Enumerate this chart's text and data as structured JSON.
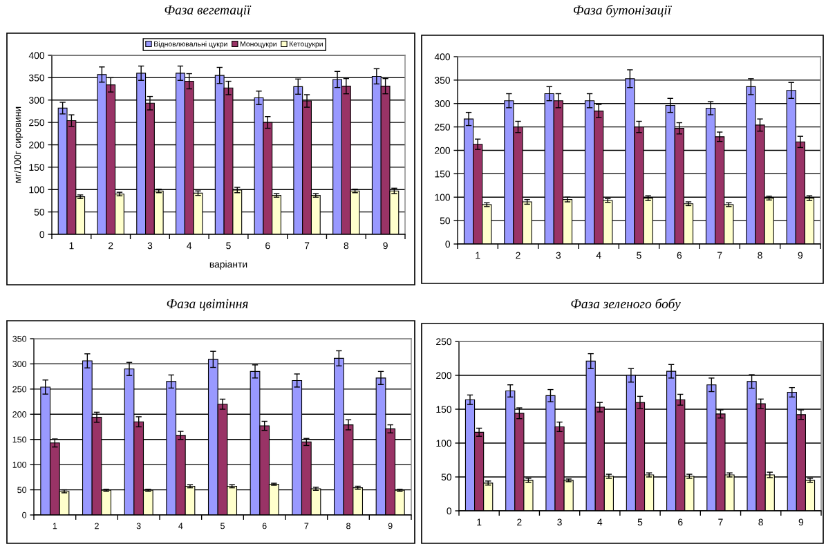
{
  "chart_data": [
    {
      "type": "bar",
      "title": "Фаза вегетації",
      "xlabel": "варіанти",
      "ylabel": "мг/100г сировини",
      "categories": [
        "1",
        "2",
        "3",
        "4",
        "5",
        "6",
        "7",
        "8",
        "9"
      ],
      "ylim": [
        0,
        400
      ],
      "yticks": [
        0,
        50,
        100,
        150,
        200,
        250,
        300,
        350,
        400
      ],
      "grid": "y",
      "legend": "top",
      "series": [
        {
          "name": "Відновлювальні цукри",
          "color": "#9999ff",
          "values": [
            282,
            357,
            360,
            360,
            355,
            305,
            330,
            346,
            353
          ],
          "errors": [
            13,
            17,
            16,
            16,
            18,
            15,
            17,
            18,
            17
          ]
        },
        {
          "name": "Моноцукри",
          "color": "#993366",
          "values": [
            254,
            334,
            293,
            342,
            327,
            250,
            298,
            331,
            331
          ],
          "errors": [
            13,
            16,
            15,
            17,
            15,
            13,
            14,
            17,
            17
          ]
        },
        {
          "name": "Кетоцукри",
          "color": "#ffffcc",
          "values": [
            84,
            90,
            97,
            92,
            99,
            87,
            87,
            97,
            97
          ],
          "errors": [
            4,
            4,
            4,
            5,
            6,
            4,
            4,
            4,
            6
          ]
        }
      ]
    },
    {
      "type": "bar",
      "title": "Фаза бутонізації",
      "categories": [
        "1",
        "2",
        "3",
        "4",
        "5",
        "6",
        "7",
        "8",
        "9"
      ],
      "ylim": [
        0,
        400
      ],
      "yticks": [
        0,
        50,
        100,
        150,
        200,
        250,
        300,
        350,
        400
      ],
      "grid": "y",
      "series": [
        {
          "color": "#9999ff",
          "values": [
            267,
            306,
            321,
            306,
            353,
            296,
            290,
            336,
            328
          ],
          "errors": [
            14,
            15,
            15,
            15,
            19,
            15,
            14,
            17,
            17
          ]
        },
        {
          "color": "#993366",
          "values": [
            213,
            250,
            306,
            284,
            250,
            247,
            229,
            254,
            218
          ],
          "errors": [
            11,
            12,
            15,
            14,
            12,
            12,
            10,
            13,
            12
          ]
        },
        {
          "color": "#ffffcc",
          "values": [
            84,
            90,
            95,
            93,
            98,
            86,
            84,
            98,
            98
          ],
          "errors": [
            4,
            5,
            5,
            4,
            5,
            4,
            4,
            4,
            5
          ]
        }
      ]
    },
    {
      "type": "bar",
      "title": "Фаза цвітіння",
      "categories": [
        "1",
        "2",
        "3",
        "4",
        "5",
        "6",
        "7",
        "8",
        "9"
      ],
      "ylim": [
        0,
        350
      ],
      "yticks": [
        0,
        50,
        100,
        150,
        200,
        250,
        300,
        350
      ],
      "grid": "y",
      "series": [
        {
          "color": "#9999ff",
          "values": [
            254,
            306,
            290,
            265,
            309,
            285,
            267,
            311,
            272
          ],
          "errors": [
            14,
            14,
            13,
            13,
            16,
            13,
            13,
            15,
            13
          ]
        },
        {
          "color": "#993366",
          "values": [
            143,
            194,
            185,
            158,
            220,
            177,
            145,
            179,
            171
          ],
          "errors": [
            8,
            10,
            10,
            8,
            10,
            9,
            7,
            10,
            8
          ]
        },
        {
          "color": "#ffffcc",
          "values": [
            47,
            49,
            49,
            57,
            57,
            61,
            52,
            54,
            49
          ],
          "errors": [
            3,
            2,
            2,
            3,
            3,
            2,
            3,
            3,
            2
          ]
        }
      ]
    },
    {
      "type": "bar",
      "title": "Фаза зеленого бобу",
      "categories": [
        "1",
        "2",
        "3",
        "4",
        "5",
        "6",
        "7",
        "8",
        "9"
      ],
      "ylim": [
        0,
        250
      ],
      "yticks": [
        0,
        50,
        100,
        150,
        200,
        250
      ],
      "grid": "y",
      "series": [
        {
          "color": "#9999ff",
          "values": [
            164,
            177,
            170,
            221,
            200,
            206,
            186,
            191,
            175
          ],
          "errors": [
            7,
            9,
            9,
            11,
            10,
            10,
            10,
            10,
            7
          ]
        },
        {
          "color": "#993366",
          "values": [
            116,
            144,
            124,
            153,
            160,
            164,
            143,
            158,
            142
          ],
          "errors": [
            6,
            8,
            7,
            7,
            9,
            8,
            6,
            7,
            7
          ]
        },
        {
          "color": "#ffffcc",
          "values": [
            41,
            45,
            45,
            51,
            53,
            51,
            53,
            53,
            45
          ],
          "errors": [
            3,
            3,
            2,
            3,
            3,
            3,
            3,
            4,
            3
          ]
        }
      ]
    }
  ]
}
